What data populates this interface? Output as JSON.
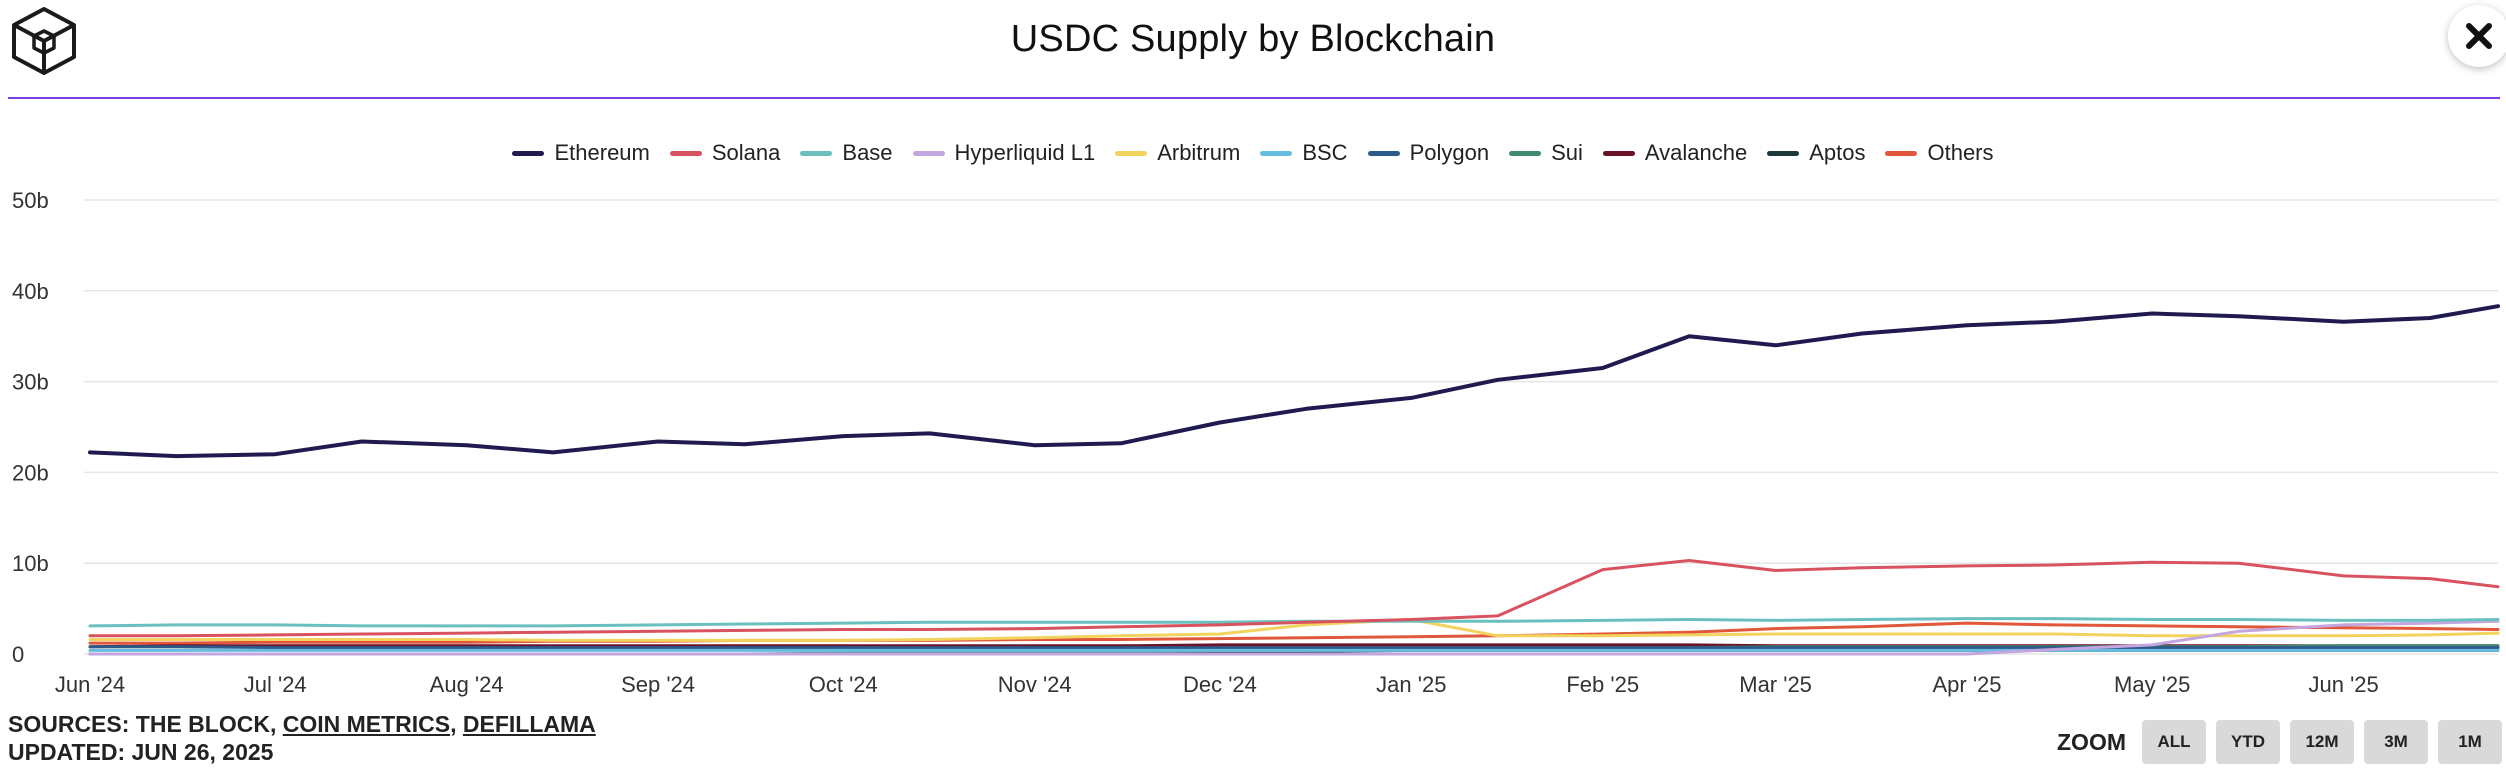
{
  "header": {
    "title": "USDC Supply by Blockchain"
  },
  "icons": {
    "logo": "the-block-cube-icon",
    "close": "close-icon"
  },
  "footer": {
    "sources_prefix": "SOURCES: THE BLOCK, ",
    "link1": "COIN METRICS",
    "separator": ", ",
    "link2": "DEFILLAMA",
    "updated": "UPDATED: JUN 26, 2025"
  },
  "zoom": {
    "label": "ZOOM",
    "buttons": [
      "ALL",
      "YTD",
      "12M",
      "3M",
      "1M"
    ]
  },
  "chart_data": {
    "type": "line",
    "title": "USDC Supply by Blockchain",
    "xlabel": "",
    "ylabel": "",
    "x_ticks": [
      "Jun '24",
      "Jul '24",
      "Aug '24",
      "Sep '24",
      "Oct '24",
      "Nov '24",
      "Dec '24",
      "Jan '25",
      "Feb '25",
      "Mar '25",
      "Apr '25",
      "May '25",
      "Jun '25"
    ],
    "y_ticks": [
      "0",
      "10b",
      "20b",
      "30b",
      "40b",
      "50b"
    ],
    "ylim": [
      0,
      50
    ],
    "y_unit": "billions USD",
    "x": [
      "2024-06-01",
      "2024-06-15",
      "2024-07-01",
      "2024-07-15",
      "2024-08-01",
      "2024-08-15",
      "2024-09-01",
      "2024-09-15",
      "2024-10-01",
      "2024-10-15",
      "2024-11-01",
      "2024-11-15",
      "2024-12-01",
      "2024-12-15",
      "2025-01-01",
      "2025-01-15",
      "2025-02-01",
      "2025-02-15",
      "2025-03-01",
      "2025-03-15",
      "2025-04-01",
      "2025-04-15",
      "2025-05-01",
      "2025-05-15",
      "2025-06-01",
      "2025-06-15",
      "2025-06-26"
    ],
    "grid": true,
    "legend_position": "top-center",
    "series": [
      {
        "name": "Ethereum",
        "color": "#1f1a4f",
        "values": [
          22.2,
          21.8,
          22.0,
          23.4,
          23.0,
          22.2,
          23.4,
          23.1,
          24.0,
          24.3,
          23.0,
          23.2,
          25.5,
          27.0,
          28.2,
          30.2,
          31.5,
          35.0,
          34.0,
          35.3,
          36.2,
          36.6,
          37.5,
          37.2,
          36.6,
          37.0,
          38.3
        ]
      },
      {
        "name": "Solana",
        "color": "#d9525f",
        "values": [
          2.0,
          2.0,
          2.1,
          2.2,
          2.3,
          2.4,
          2.5,
          2.6,
          2.7,
          2.7,
          2.8,
          3.0,
          3.2,
          3.5,
          3.8,
          4.2,
          9.3,
          10.3,
          9.2,
          9.5,
          9.7,
          9.8,
          10.1,
          10.0,
          8.6,
          8.3,
          7.4
        ]
      },
      {
        "name": "Base",
        "color": "#6abfbf",
        "values": [
          3.1,
          3.2,
          3.2,
          3.1,
          3.1,
          3.1,
          3.2,
          3.3,
          3.4,
          3.5,
          3.5,
          3.5,
          3.5,
          3.6,
          3.6,
          3.6,
          3.7,
          3.8,
          3.7,
          3.8,
          3.9,
          3.9,
          3.8,
          3.8,
          3.7,
          3.7,
          3.8
        ]
      },
      {
        "name": "Hyperliquid L1",
        "color": "#c3a6e0",
        "values": [
          0.0,
          0.0,
          0.0,
          0.0,
          0.0,
          0.0,
          0.0,
          0.0,
          0.0,
          0.0,
          0.0,
          0.0,
          0.0,
          0.0,
          0.0,
          0.0,
          0.0,
          0.0,
          0.0,
          0.0,
          0.0,
          0.5,
          1.0,
          2.5,
          3.2,
          3.4,
          3.6
        ]
      },
      {
        "name": "Arbitrum",
        "color": "#f2d35e",
        "values": [
          1.6,
          1.6,
          1.6,
          1.6,
          1.6,
          1.5,
          1.5,
          1.5,
          1.5,
          1.6,
          1.8,
          2.0,
          2.2,
          3.2,
          3.8,
          2.0,
          2.0,
          2.1,
          2.2,
          2.2,
          2.2,
          2.2,
          2.0,
          2.0,
          2.0,
          2.1,
          2.3
        ]
      },
      {
        "name": "BSC",
        "color": "#66bde0",
        "values": [
          0.4,
          0.4,
          0.4,
          0.4,
          0.4,
          0.4,
          0.4,
          0.4,
          0.4,
          0.4,
          0.4,
          0.4,
          0.4,
          0.4,
          0.4,
          0.4,
          0.4,
          0.4,
          0.4,
          0.4,
          0.4,
          0.4,
          0.4,
          0.4,
          0.4,
          0.4,
          0.4
        ]
      },
      {
        "name": "Polygon",
        "color": "#2e5a8a",
        "values": [
          0.8,
          0.8,
          0.7,
          0.7,
          0.7,
          0.7,
          0.7,
          0.7,
          0.7,
          0.7,
          0.7,
          0.7,
          0.7,
          0.7,
          0.7,
          0.7,
          0.7,
          0.7,
          0.7,
          0.7,
          0.7,
          0.7,
          0.7,
          0.7,
          0.7,
          0.7,
          0.7
        ]
      },
      {
        "name": "Sui",
        "color": "#3f8a73",
        "values": [
          0.0,
          0.0,
          0.0,
          0.0,
          0.0,
          0.0,
          0.0,
          0.0,
          0.1,
          0.2,
          0.3,
          0.3,
          0.4,
          0.4,
          0.5,
          0.6,
          0.7,
          0.7,
          0.8,
          0.8,
          0.8,
          0.8,
          0.8,
          0.8,
          0.9,
          0.9,
          0.9
        ]
      },
      {
        "name": "Avalanche",
        "color": "#6b1228",
        "values": [
          0.8,
          0.9,
          0.9,
          0.9,
          0.9,
          0.9,
          0.9,
          0.9,
          0.9,
          0.9,
          0.9,
          0.9,
          1.0,
          1.0,
          1.0,
          1.0,
          1.0,
          1.0,
          0.9,
          0.9,
          0.9,
          0.9,
          0.9,
          0.9,
          0.9,
          0.9,
          0.9
        ]
      },
      {
        "name": "Aptos",
        "color": "#1a3a3a",
        "values": [
          0.0,
          0.0,
          0.0,
          0.0,
          0.0,
          0.0,
          0.0,
          0.0,
          0.0,
          0.0,
          0.1,
          0.2,
          0.3,
          0.3,
          0.4,
          0.4,
          0.4,
          0.4,
          0.4,
          0.4,
          0.4,
          0.4,
          0.4,
          0.4,
          0.4,
          0.4,
          0.4
        ]
      },
      {
        "name": "Others",
        "color": "#e0573a",
        "values": [
          1.2,
          1.2,
          1.3,
          1.3,
          1.3,
          1.4,
          1.4,
          1.5,
          1.5,
          1.5,
          1.6,
          1.6,
          1.7,
          1.8,
          1.9,
          2.0,
          2.2,
          2.4,
          2.8,
          3.0,
          3.4,
          3.2,
          3.1,
          3.0,
          2.9,
          2.8,
          2.7
        ]
      }
    ]
  }
}
